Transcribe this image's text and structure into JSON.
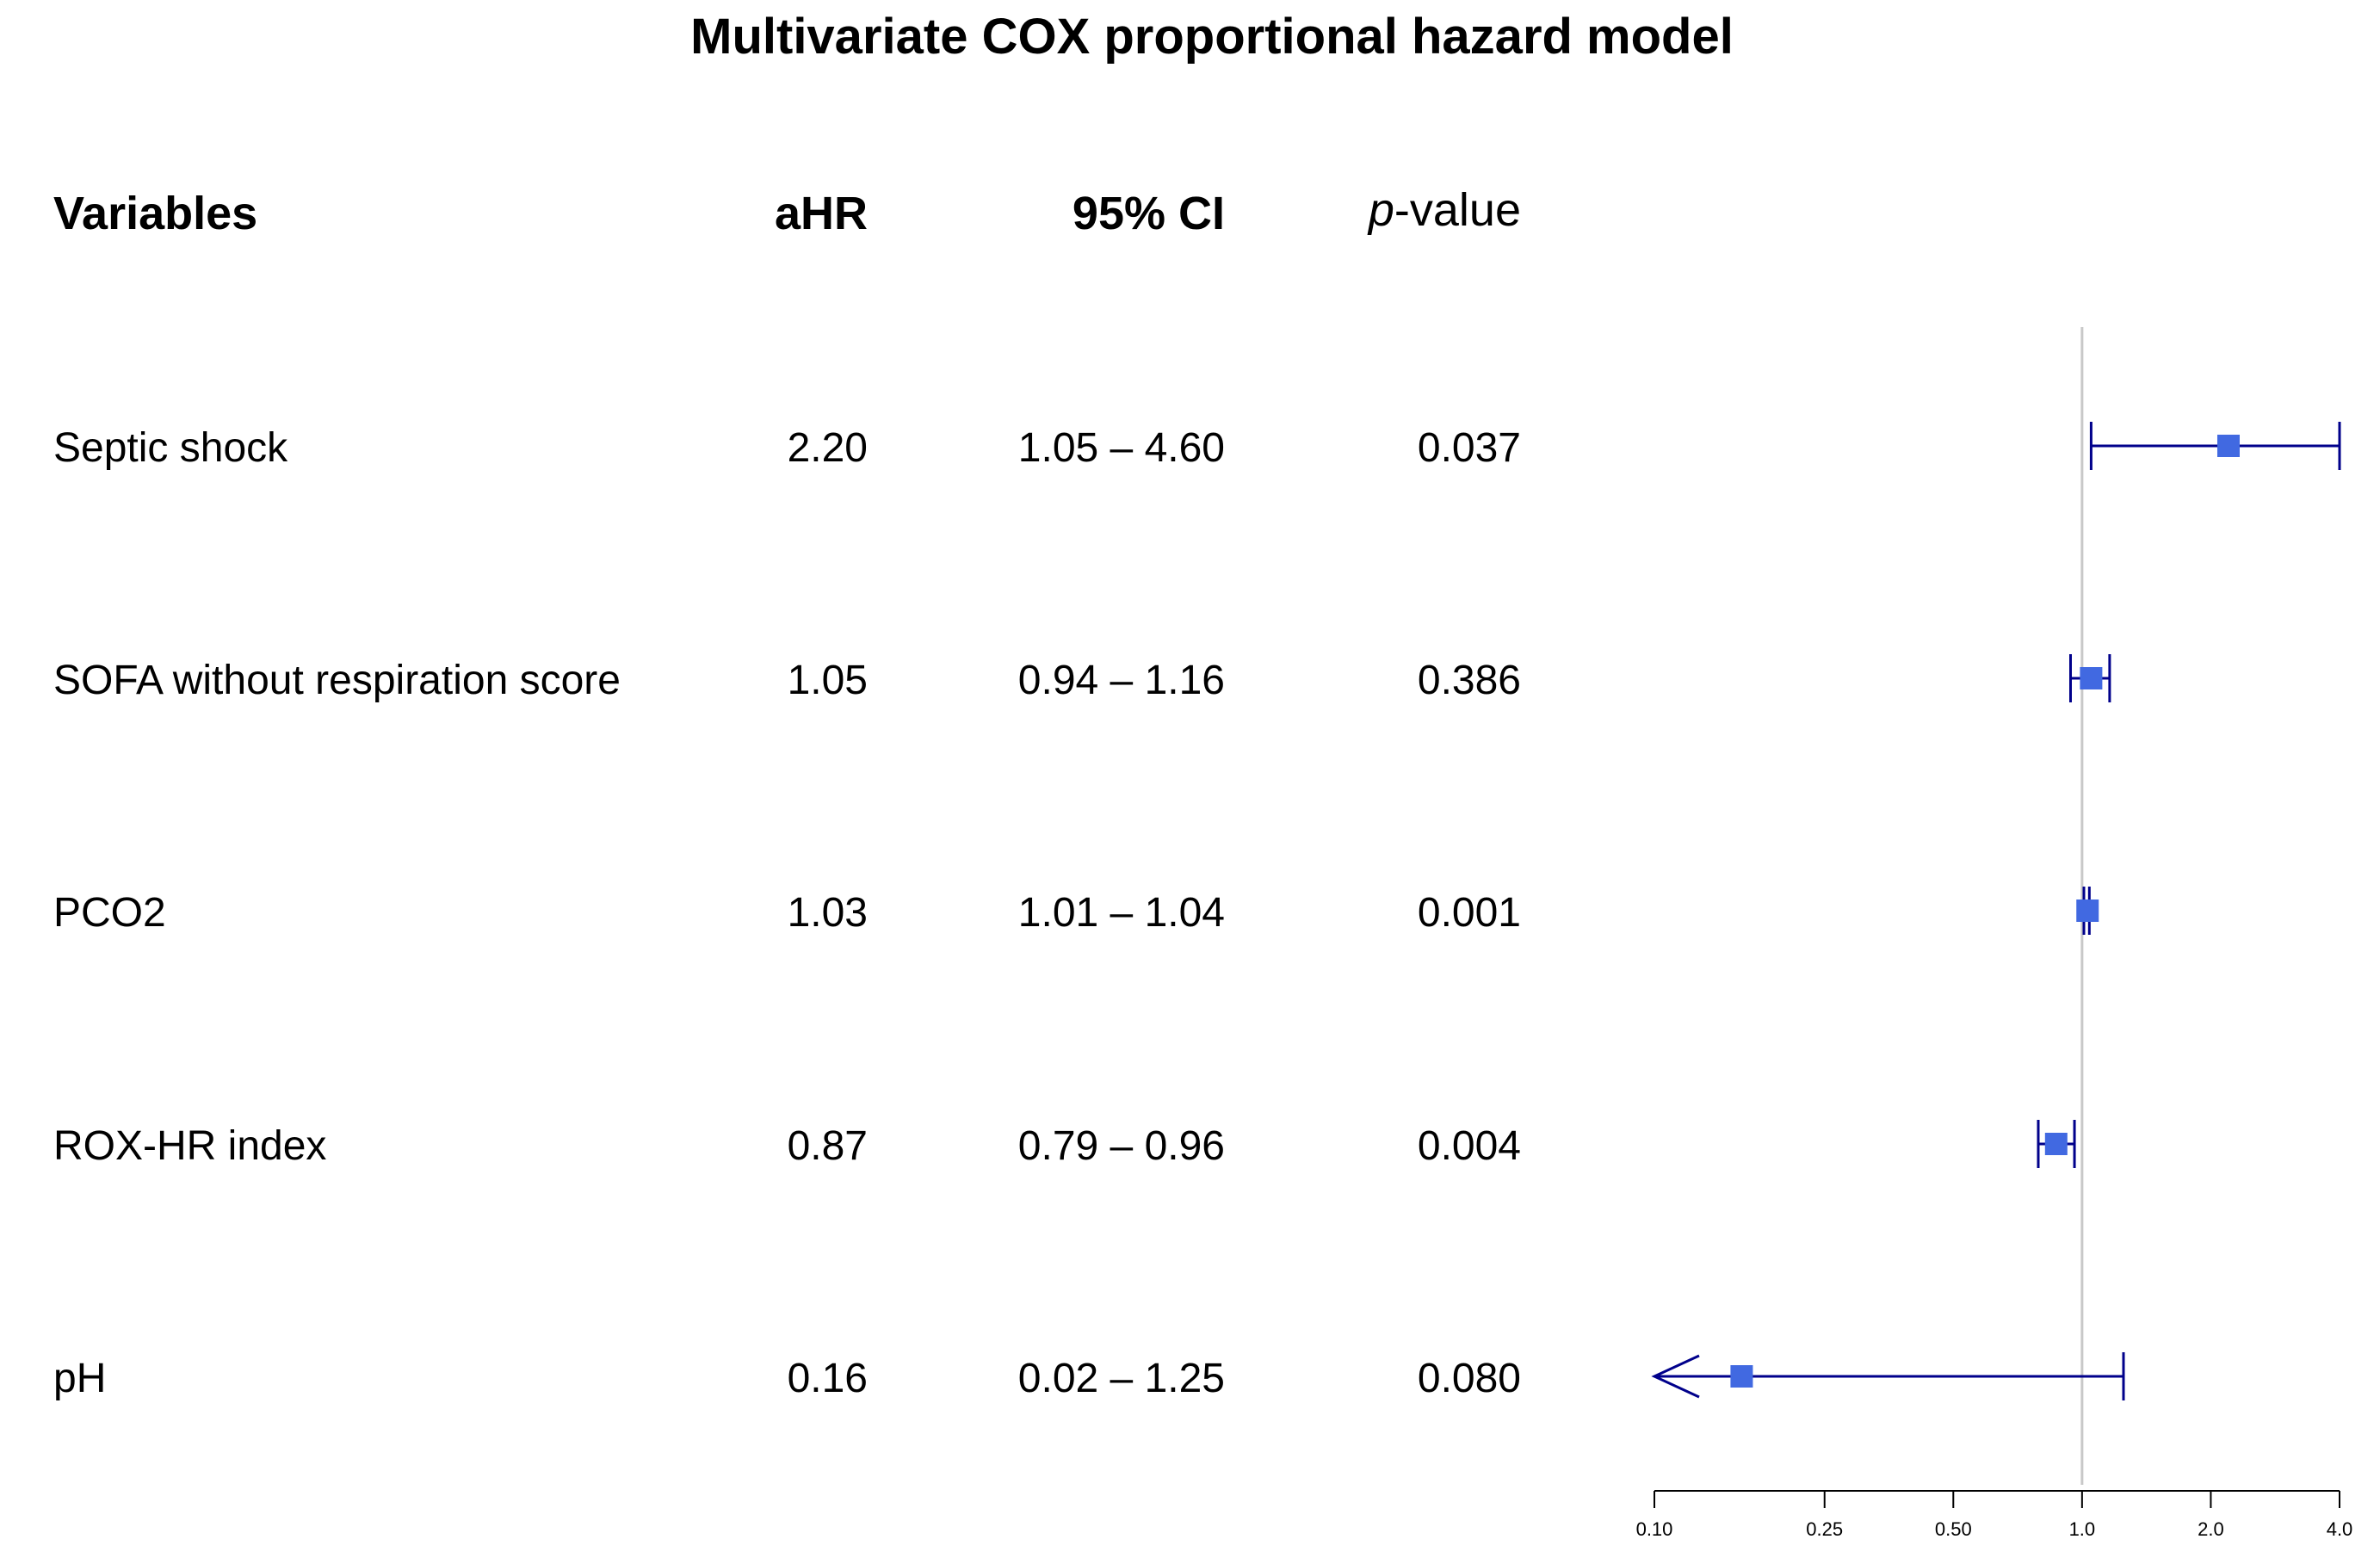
{
  "chart_data": {
    "type": "forest",
    "title": "Multivariate COX proportional hazard model",
    "columns": {
      "variable": "Variables",
      "ahr": "aHR",
      "ci": "95% CI",
      "pvalue_italic": "p",
      "pvalue_rest": "-value"
    },
    "rows": [
      {
        "variable": "Septic shock",
        "ahr": 2.2,
        "lower": 1.05,
        "upper": 4.6,
        "ahr_text": "2.20",
        "ci_text": "1.05 – 4.60",
        "p_text": "0.037"
      },
      {
        "variable": "SOFA without respiration score",
        "ahr": 1.05,
        "lower": 0.94,
        "upper": 1.16,
        "ahr_text": "1.05",
        "ci_text": "0.94 – 1.16",
        "p_text": "0.386"
      },
      {
        "variable": "PCO2",
        "ahr": 1.03,
        "lower": 1.01,
        "upper": 1.04,
        "ahr_text": "1.03",
        "ci_text": "1.01 – 1.04",
        "p_text": "0.001"
      },
      {
        "variable": "ROX-HR index",
        "ahr": 0.87,
        "lower": 0.79,
        "upper": 0.96,
        "ahr_text": "0.87",
        "ci_text": "0.79 – 0.96",
        "p_text": "0.004"
      },
      {
        "variable": "pH",
        "ahr": 0.16,
        "lower": 0.02,
        "upper": 1.25,
        "ahr_text": "0.16",
        "ci_text": "0.02 – 1.25",
        "p_text": "0.080"
      }
    ],
    "x_scale": "log",
    "xlim": [
      0.1,
      4.0
    ],
    "reference_line": 1.0,
    "x_ticks": [
      {
        "value": 0.1,
        "label": "0.10"
      },
      {
        "value": 0.25,
        "label": "0.25"
      },
      {
        "value": 0.5,
        "label": "0.50"
      },
      {
        "value": 1.0,
        "label": "1.0"
      },
      {
        "value": 2.0,
        "label": "2.0"
      },
      {
        "value": 4.0,
        "label": "4.0"
      }
    ],
    "colors": {
      "marker": "#4169E1",
      "ci_line": "#00008B",
      "reference_line": "#c8c8c8",
      "axis": "#000000"
    }
  }
}
